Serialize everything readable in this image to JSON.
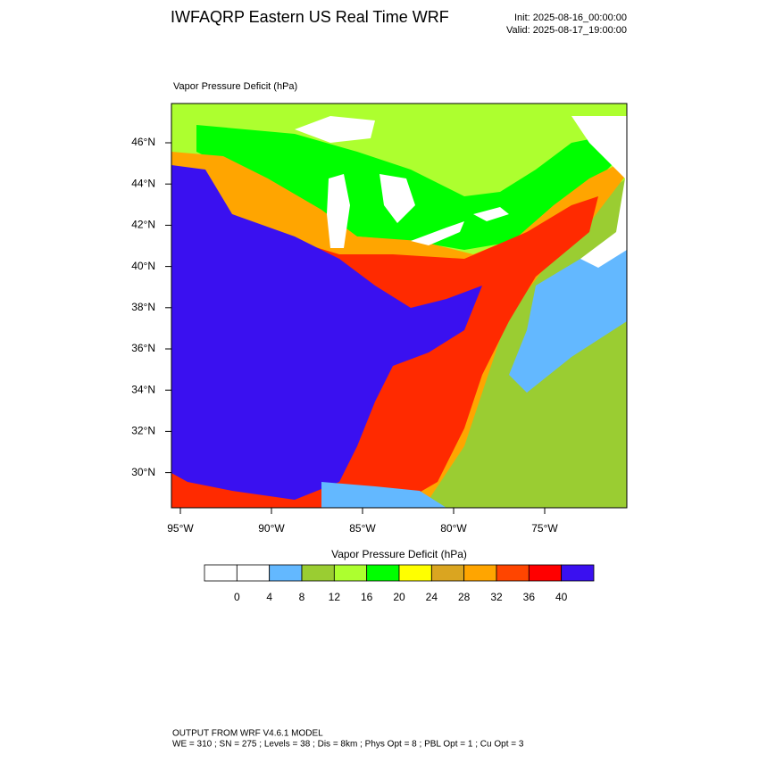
{
  "header": {
    "title": "IWFAQRP Eastern US Real Time WRF",
    "init": "Init: 2025-08-16_00:00:00",
    "valid": "Valid: 2025-08-17_19:00:00"
  },
  "map": {
    "label": "Vapor Pressure Deficit   (hPa)",
    "lat_labels": [
      "46°N",
      "44°N",
      "42°N",
      "40°N",
      "38°N",
      "36°N",
      "34°N",
      "32°N",
      "30°N"
    ],
    "lon_labels": [
      "95°W",
      "90°W",
      "85°W",
      "80°W",
      "75°W"
    ]
  },
  "colorbar": {
    "title": "Vapor Pressure Deficit   (hPa)",
    "colors": [
      "#ffffff",
      "#ffffff",
      "#63b8ff",
      "#9acd32",
      "#adff2f",
      "#00ff00",
      "#ffff00",
      "#daa520",
      "#ffa500",
      "#ff4500",
      "#ff0000",
      "#3a10f0"
    ],
    "labels": [
      0,
      4,
      8,
      12,
      16,
      20,
      24,
      28,
      32,
      36,
      40
    ]
  },
  "footer": {
    "line1": "OUTPUT FROM WRF V4.6.1 MODEL",
    "line2": "WE = 310 ; SN = 275 ; Levels = 38 ; Dis = 8km ; Phys Opt = 8 ; PBL Opt = 1 ; Cu Opt = 3"
  }
}
